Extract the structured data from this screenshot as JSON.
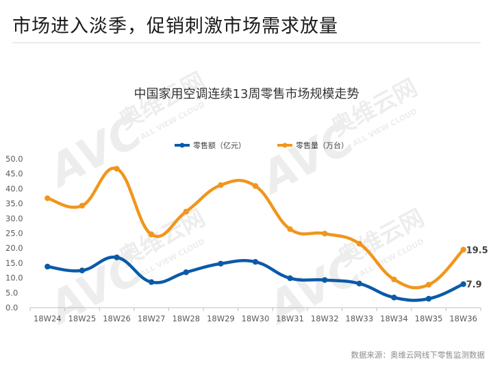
{
  "page": {
    "title": "市场进入淡季，促销刺激市场需求放量",
    "source": "数据来源：奥维云网线下零售监测数据",
    "watermark_text": "AVC",
    "watermark_cn": "奥维云网",
    "watermark_en": "ALL VIEW CLOUD"
  },
  "chart_data": {
    "type": "line",
    "title": "中国家用空调连续13周零售市场规模走势",
    "categories": [
      "18W24",
      "18W25",
      "18W26",
      "18W27",
      "18W28",
      "18W29",
      "18W30",
      "18W31",
      "18W32",
      "18W33",
      "18W34",
      "18W35",
      "18W36"
    ],
    "series": [
      {
        "name": "零售额（亿元）",
        "color": "#0b5aa8",
        "values": [
          13.8,
          12.5,
          16.9,
          8.6,
          11.9,
          14.8,
          15.4,
          9.9,
          9.3,
          8.1,
          3.4,
          3.0,
          7.9
        ]
      },
      {
        "name": "零售量（万台）",
        "color": "#f0961c",
        "values": [
          36.8,
          34.3,
          46.7,
          24.6,
          32.3,
          41.2,
          40.9,
          26.4,
          24.9,
          21.5,
          9.5,
          7.7,
          19.5
        ]
      }
    ],
    "end_labels": [
      "7.9",
      "19.5"
    ],
    "yticks": [
      "0.0",
      "5.0",
      "10.0",
      "15.0",
      "20.0",
      "25.0",
      "30.0",
      "35.0",
      "40.0",
      "45.0",
      "50.0"
    ],
    "ylim": [
      0,
      50
    ],
    "legend_position": "top-center",
    "smooth": true
  }
}
